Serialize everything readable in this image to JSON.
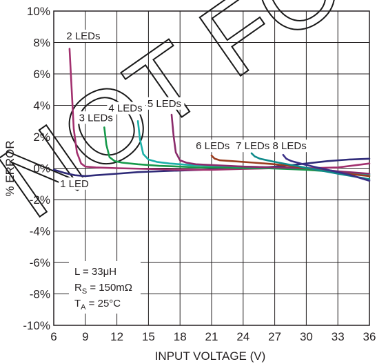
{
  "chart_data": {
    "type": "line",
    "xlabel": "INPUT VOLTAGE (V)",
    "ylabel": "% ERROR",
    "xlim": [
      6,
      36
    ],
    "ylim": [
      -10,
      10
    ],
    "x_ticks": [
      6,
      9,
      12,
      15,
      18,
      21,
      24,
      27,
      30,
      33,
      36
    ],
    "y_ticks": [
      10,
      8,
      6,
      4,
      2,
      0,
      -2,
      -4,
      -6,
      -8,
      -10
    ],
    "x_tick_labels": [
      "6",
      "9",
      "12",
      "15",
      "18",
      "21",
      "24",
      "27",
      "30",
      "33",
      "36"
    ],
    "y_tick_labels": [
      "10%",
      "8%",
      "6%",
      "4%",
      "2%",
      "0%",
      "-2%",
      "-4%",
      "-6%",
      "-8%",
      "-10%"
    ],
    "grid": true,
    "series": [
      {
        "name": "1 LED",
        "color": "#2e2a78",
        "x": [
          6,
          7,
          8,
          9,
          10,
          12,
          14,
          16,
          18,
          20,
          22,
          24,
          26,
          28,
          30,
          32,
          34,
          36
        ],
        "y": [
          -0.1,
          -0.3,
          -0.45,
          -0.5,
          -0.45,
          -0.35,
          -0.25,
          -0.2,
          -0.15,
          -0.1,
          -0.05,
          0.0,
          0.05,
          0.15,
          0.3,
          0.45,
          0.55,
          0.6
        ]
      },
      {
        "name": "2 LEDs",
        "color": "#a2306e",
        "x": [
          7.5,
          7.7,
          7.9,
          8.2,
          8.6,
          9,
          10,
          12,
          15,
          18,
          21,
          24,
          27,
          30,
          33,
          36
        ],
        "y": [
          7.6,
          5.0,
          2.5,
          1.0,
          0.3,
          0.1,
          0.05,
          0.0,
          -0.05,
          -0.1,
          -0.1,
          -0.05,
          0.0,
          0.0,
          0.05,
          0.3
        ]
      },
      {
        "name": "3 LEDs",
        "color": "#16994a",
        "x": [
          10.8,
          11.0,
          11.3,
          11.8,
          12.5,
          14,
          16,
          18,
          20,
          22,
          24,
          26,
          28,
          30,
          32,
          34,
          36
        ],
        "y": [
          2.6,
          1.5,
          0.7,
          0.45,
          0.35,
          0.25,
          0.15,
          0.1,
          0.05,
          0.05,
          0.0,
          0.0,
          -0.05,
          -0.1,
          -0.2,
          -0.3,
          -0.5
        ]
      },
      {
        "name": "4 LEDs",
        "color": "#1ab0a8",
        "x": [
          14.0,
          14.2,
          14.5,
          15.0,
          15.8,
          17,
          19,
          21,
          24,
          27,
          30,
          33,
          36
        ],
        "y": [
          3.0,
          1.8,
          0.9,
          0.55,
          0.4,
          0.3,
          0.2,
          0.15,
          0.1,
          0.05,
          0.0,
          -0.2,
          -0.4
        ]
      },
      {
        "name": "5 LEDs",
        "color": "#8a2a6a",
        "x": [
          17.2,
          17.4,
          17.6,
          18.0,
          18.6,
          19.5,
          21,
          24,
          27,
          30,
          33,
          36
        ],
        "y": [
          3.4,
          2.0,
          1.0,
          0.5,
          0.35,
          0.25,
          0.2,
          0.1,
          0.05,
          0.0,
          -0.2,
          -0.35
        ]
      },
      {
        "name": "6 LEDs",
        "color": "#9a3b1e",
        "x": [
          21.0,
          21.3,
          21.8,
          23,
          25,
          27,
          29,
          31,
          33,
          36
        ],
        "y": [
          0.8,
          0.6,
          0.5,
          0.45,
          0.35,
          0.25,
          0.1,
          -0.1,
          -0.3,
          -0.5
        ]
      },
      {
        "name": "7 LEDs",
        "color": "#0e8a8a",
        "x": [
          24.8,
          25.1,
          25.6,
          27,
          29,
          31,
          33,
          36
        ],
        "y": [
          0.95,
          0.75,
          0.6,
          0.4,
          0.15,
          -0.1,
          -0.35,
          -0.7
        ]
      },
      {
        "name": "8 LEDs",
        "color": "#3a2f86",
        "x": [
          27.8,
          28.1,
          28.6,
          30,
          32,
          34,
          36
        ],
        "y": [
          0.85,
          0.6,
          0.45,
          0.2,
          -0.1,
          -0.4,
          -0.8
        ]
      }
    ],
    "labels": [
      {
        "text": "2 LEDs",
        "x": 7.2,
        "y": 8.2
      },
      {
        "text": "3 LEDs",
        "x": 8.4,
        "y": 3.0
      },
      {
        "text": "4 LEDs",
        "x": 11.2,
        "y": 3.6
      },
      {
        "text": "5 LEDs",
        "x": 14.9,
        "y": 3.9
      },
      {
        "text": "6 LEDs",
        "x": 19.5,
        "y": 1.2
      },
      {
        "text": "7 LEDs",
        "x": 23.3,
        "y": 1.2
      },
      {
        "text": "8 LEDs",
        "x": 26.8,
        "y": 1.2
      },
      {
        "text": "1 LED",
        "x": 6.6,
        "y": -1.2
      }
    ],
    "conditions": {
      "l": "L = 33μH",
      "rs_main": "R",
      "rs_sub": "S",
      "rs_rest": " = 150mΩ",
      "ta_main": "T",
      "ta_sub": "A",
      "ta_rest": " = 25°C"
    },
    "watermark": "NOT FOR NEW"
  }
}
